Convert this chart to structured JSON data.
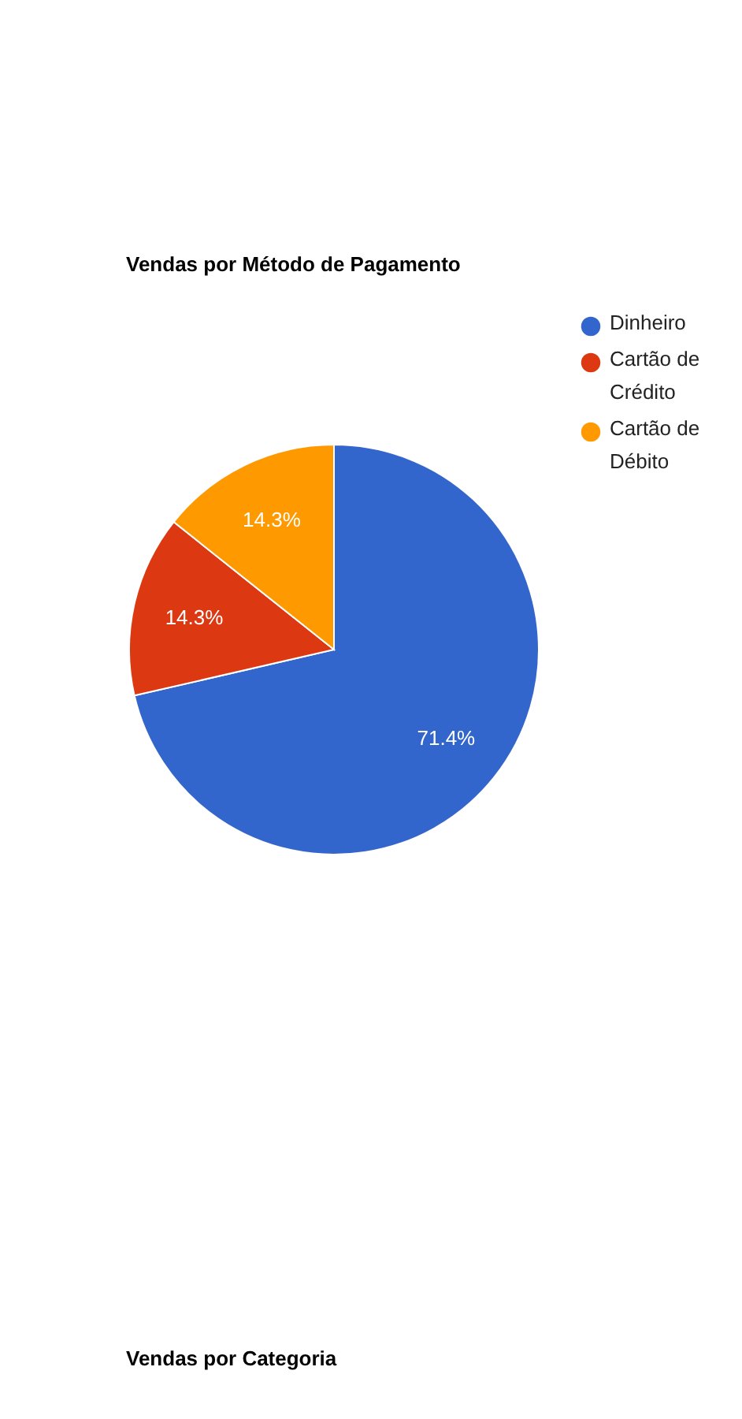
{
  "chart_data": {
    "type": "pie",
    "title": "Vendas por Método de Pagamento",
    "categories": [
      "Dinheiro",
      "Cartão de Crédito",
      "Cartão de Débito"
    ],
    "values": [
      71.4,
      14.3,
      14.3
    ],
    "colors": [
      "#3366cc",
      "#dc3912",
      "#ff9900"
    ],
    "value_labels": [
      "71.4%",
      "14.3%",
      "14.3%"
    ],
    "legend": "top right",
    "annotations": [
      "Vendas por Categoria"
    ]
  }
}
